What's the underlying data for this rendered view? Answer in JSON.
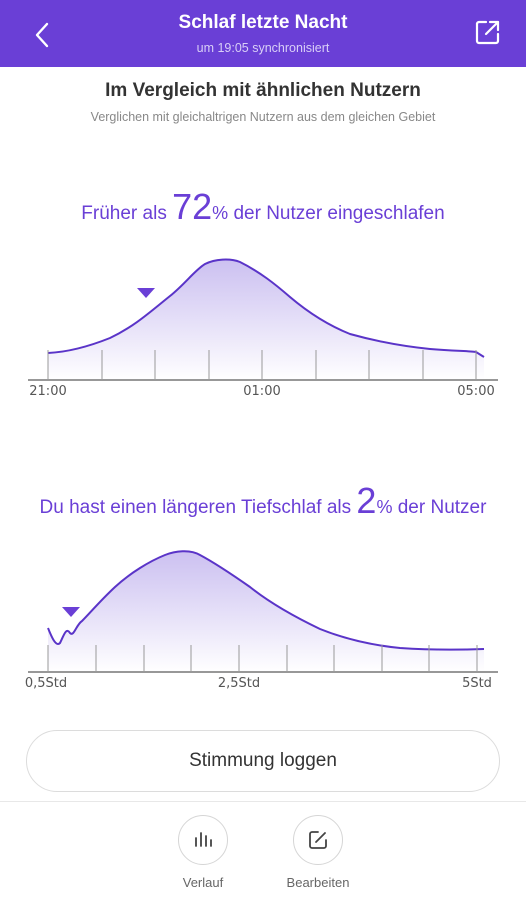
{
  "header": {
    "title": "Schlaf letzte Nacht",
    "subtitle": "um 19:05 synchronisiert",
    "back_icon": "chevron-left-icon",
    "share_icon": "share-external-icon"
  },
  "comparison": {
    "title": "Im Vergleich mit ähnlichen Nutzern",
    "subtitle": "Verglichen mit gleichaltrigen Nutzern aus dem gleichen Gebiet"
  },
  "stat1": {
    "prefix": "Früher als ",
    "value": "72",
    "unit": "%",
    "suffix": " der Nutzer eingeschlafen",
    "marker_percentile": 72
  },
  "stat2": {
    "prefix": "Du hast einen längeren Tiefschlaf als ",
    "value": "2",
    "unit": "%",
    "suffix": " der Nutzer",
    "marker_percentile": 2
  },
  "chart_data": [
    {
      "type": "area",
      "x_tick_labels": [
        "21:00",
        "01:00",
        "05:00"
      ],
      "marker_x": "22:45",
      "title": "",
      "xlabel": "",
      "ylabel": ""
    },
    {
      "type": "area",
      "x_tick_labels": [
        "0,5Std",
        "2,5Std",
        "5Std"
      ],
      "marker_x": "0,9Std",
      "title": "",
      "xlabel": "",
      "ylabel": ""
    }
  ],
  "mood_button": {
    "label": "Stimmung loggen"
  },
  "bottom_nav": {
    "history": {
      "label": "Verlauf",
      "icon": "bar-chart-icon"
    },
    "edit": {
      "label": "Bearbeiten",
      "icon": "edit-icon"
    }
  },
  "colors": {
    "accent": "#6a3fd6",
    "curve": "#5a34c8",
    "fill_top": "#c9bdf0",
    "fill_bottom": "#ffffff"
  }
}
